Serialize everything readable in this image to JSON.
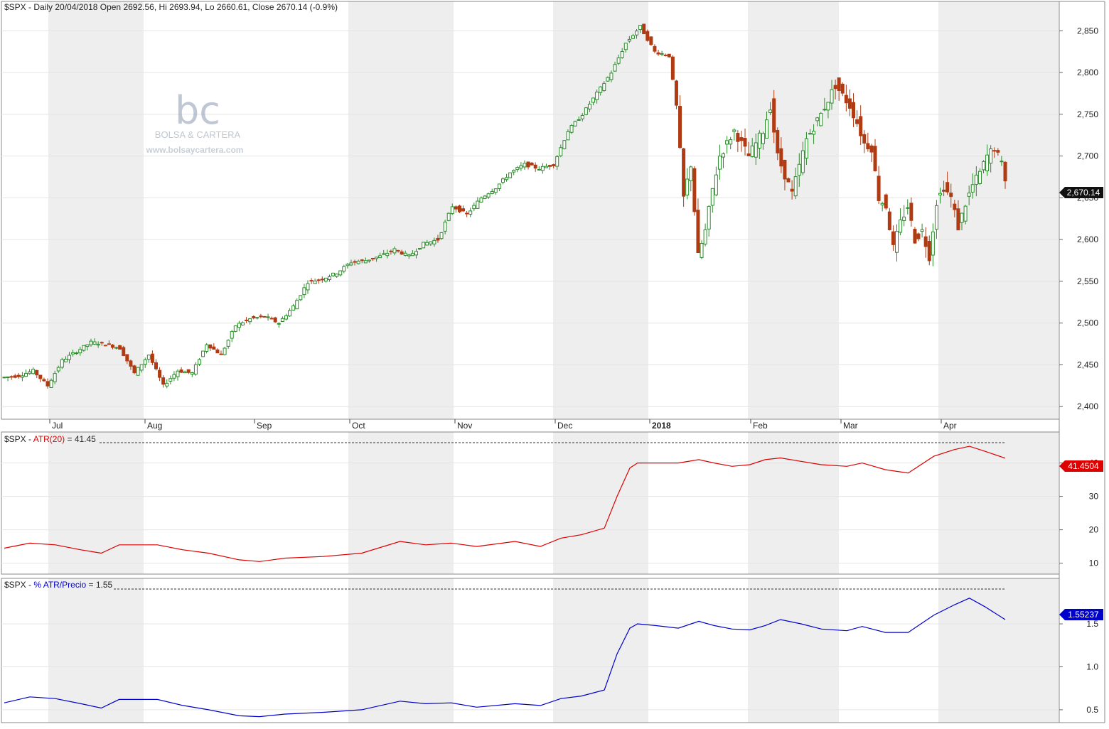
{
  "price_panel": {
    "symbol": "$SPX",
    "header": "$SPX - Daily 20/04/2018 Open 2692.56, Hi 2693.94, Lo 2660.61, Close 2670.14 (-0.9%)",
    "last_label": "2,670.14",
    "y_ticks": [
      "2,850",
      "2,800",
      "2,750",
      "2,700",
      "2,650",
      "2,600",
      "2,550",
      "2,500",
      "2,450",
      "2,400"
    ]
  },
  "atr_panel": {
    "prefix": "$SPX - ",
    "indicator": "ATR(20)",
    "value": " = 41.45",
    "last_label": "41.4504",
    "y_ticks": [
      "40",
      "30",
      "20",
      "10"
    ],
    "color": "#dd0000"
  },
  "pct_panel": {
    "prefix": "$SPX - ",
    "indicator": "% ATR/Precio",
    "value": " = 1.55",
    "last_label": "1.55237",
    "y_ticks": [
      "1.5",
      "1.0",
      "0.5"
    ],
    "color": "#0000cc"
  },
  "x_labels": [
    "Jul",
    "Aug",
    "Sep",
    "Oct",
    "Nov",
    "Dec",
    "2018",
    "Feb",
    "Mar",
    "Apr"
  ],
  "watermark": {
    "logo": "bc",
    "name": "BOLSA & CARTERA",
    "url": "www.bolsaycartera.com"
  },
  "colors": {
    "up": "#2a8c2a",
    "down": "#b03a12",
    "shade": "#eeeeee"
  },
  "chart_data": [
    {
      "type": "candlestick",
      "title": "$SPX - Daily 20/04/2018 Open 2692.56, Hi 2693.94, Lo 2660.61, Close 2670.14 (-0.9%)",
      "ylim": [
        2390,
        2880
      ],
      "y_ticks": [
        2400,
        2450,
        2500,
        2550,
        2600,
        2650,
        2700,
        2750,
        2800,
        2850
      ],
      "close_path": [
        [
          0,
          2435
        ],
        [
          4,
          2437
        ],
        [
          8,
          2443
        ],
        [
          12,
          2425
        ],
        [
          16,
          2455
        ],
        [
          20,
          2466
        ],
        [
          24,
          2477
        ],
        [
          28,
          2475
        ],
        [
          32,
          2470
        ],
        [
          36,
          2440
        ],
        [
          40,
          2462
        ],
        [
          44,
          2425
        ],
        [
          48,
          2443
        ],
        [
          52,
          2440
        ],
        [
          56,
          2475
        ],
        [
          60,
          2462
        ],
        [
          64,
          2497
        ],
        [
          68,
          2505
        ],
        [
          72,
          2508
        ],
        [
          76,
          2500
        ],
        [
          80,
          2520
        ],
        [
          84,
          2549
        ],
        [
          88,
          2553
        ],
        [
          92,
          2560
        ],
        [
          96,
          2573
        ],
        [
          100,
          2575
        ],
        [
          104,
          2580
        ],
        [
          108,
          2588
        ],
        [
          112,
          2580
        ],
        [
          116,
          2595
        ],
        [
          120,
          2600
        ],
        [
          124,
          2640
        ],
        [
          128,
          2630
        ],
        [
          132,
          2650
        ],
        [
          136,
          2662
        ],
        [
          140,
          2680
        ],
        [
          144,
          2690
        ],
        [
          148,
          2685
        ],
        [
          152,
          2690
        ],
        [
          156,
          2730
        ],
        [
          160,
          2750
        ],
        [
          164,
          2775
        ],
        [
          168,
          2800
        ],
        [
          172,
          2835
        ],
        [
          176,
          2855
        ],
        [
          180,
          2825
        ],
        [
          184,
          2820
        ],
        [
          186,
          2760
        ],
        [
          188,
          2650
        ],
        [
          190,
          2690
        ],
        [
          192,
          2580
        ],
        [
          194,
          2610
        ],
        [
          196,
          2660
        ],
        [
          198,
          2700
        ],
        [
          202,
          2730
        ],
        [
          206,
          2700
        ],
        [
          210,
          2730
        ],
        [
          212,
          2760
        ],
        [
          214,
          2700
        ],
        [
          218,
          2655
        ],
        [
          222,
          2720
        ],
        [
          226,
          2750
        ],
        [
          230,
          2785
        ],
        [
          234,
          2760
        ],
        [
          236,
          2740
        ],
        [
          238,
          2715
        ],
        [
          240,
          2710
        ],
        [
          242,
          2650
        ],
        [
          244,
          2640
        ],
        [
          246,
          2590
        ],
        [
          248,
          2620
        ],
        [
          250,
          2640
        ],
        [
          252,
          2600
        ],
        [
          254,
          2610
        ],
        [
          256,
          2580
        ],
        [
          258,
          2645
        ],
        [
          260,
          2663
        ],
        [
          262,
          2650
        ],
        [
          264,
          2615
        ],
        [
          266,
          2643
        ],
        [
          268,
          2665
        ],
        [
          270,
          2680
        ],
        [
          272,
          2700
        ],
        [
          274,
          2710
        ],
        [
          276,
          2690
        ],
        [
          277,
          2670.14
        ]
      ],
      "last": {
        "date": "20/04/2018",
        "open": 2692.56,
        "high": 2693.94,
        "low": 2660.61,
        "close": 2670.14,
        "change": "-0.9%"
      }
    },
    {
      "type": "line",
      "title": "$SPX - ATR(20) = 41.45",
      "ylim": [
        8,
        48
      ],
      "y_ticks": [
        10,
        20,
        30,
        40
      ],
      "series": [
        {
          "name": "ATR(20)",
          "color": "#dd0000",
          "points": [
            [
              0,
              14.5
            ],
            [
              10,
              16
            ],
            [
              20,
              15.5
            ],
            [
              30,
              14
            ],
            [
              38,
              13
            ],
            [
              45,
              15.5
            ],
            [
              60,
              15.5
            ],
            [
              70,
              14
            ],
            [
              80,
              13
            ],
            [
              92,
              11
            ],
            [
              100,
              10.5
            ],
            [
              110,
              11.5
            ],
            [
              125,
              12
            ],
            [
              140,
              13
            ],
            [
              155,
              16.5
            ],
            [
              165,
              15.5
            ],
            [
              175,
              16
            ],
            [
              185,
              15
            ],
            [
              200,
              16.5
            ],
            [
              210,
              15
            ],
            [
              218,
              17.5
            ],
            [
              226,
              18.5
            ],
            [
              235,
              20.5
            ],
            [
              240,
              30
            ],
            [
              245,
              38.5
            ],
            [
              248,
              40
            ],
            [
              255,
              40
            ],
            [
              264,
              40
            ],
            [
              272,
              41
            ],
            [
              278,
              40
            ],
            [
              285,
              39
            ],
            [
              292,
              39.5
            ],
            [
              298,
              41
            ],
            [
              304,
              41.5
            ],
            [
              312,
              40.5
            ],
            [
              320,
              39.5
            ],
            [
              330,
              39
            ],
            [
              336,
              40
            ],
            [
              345,
              38
            ],
            [
              354,
              37
            ],
            [
              364,
              42
            ],
            [
              372,
              44
            ],
            [
              378,
              45
            ],
            [
              384,
              43.5
            ],
            [
              392,
              41.45
            ]
          ]
        }
      ]
    },
    {
      "type": "line",
      "title": "$SPX - % ATR/Precio = 1.55",
      "ylim": [
        0.4,
        1.98
      ],
      "y_ticks": [
        0.5,
        1.0,
        1.5
      ],
      "series": [
        {
          "name": "% ATR/Precio",
          "color": "#0000cc",
          "points": [
            [
              0,
              0.58
            ],
            [
              10,
              0.65
            ],
            [
              20,
              0.63
            ],
            [
              30,
              0.57
            ],
            [
              38,
              0.52
            ],
            [
              45,
              0.62
            ],
            [
              60,
              0.62
            ],
            [
              70,
              0.55
            ],
            [
              80,
              0.5
            ],
            [
              92,
              0.43
            ],
            [
              100,
              0.42
            ],
            [
              110,
              0.45
            ],
            [
              125,
              0.47
            ],
            [
              140,
              0.5
            ],
            [
              155,
              0.6
            ],
            [
              165,
              0.57
            ],
            [
              175,
              0.58
            ],
            [
              185,
              0.53
            ],
            [
              200,
              0.57
            ],
            [
              210,
              0.55
            ],
            [
              218,
              0.63
            ],
            [
              226,
              0.66
            ],
            [
              235,
              0.73
            ],
            [
              240,
              1.15
            ],
            [
              245,
              1.45
            ],
            [
              248,
              1.5
            ],
            [
              255,
              1.48
            ],
            [
              264,
              1.45
            ],
            [
              272,
              1.53
            ],
            [
              278,
              1.48
            ],
            [
              285,
              1.44
            ],
            [
              292,
              1.43
            ],
            [
              298,
              1.48
            ],
            [
              304,
              1.55
            ],
            [
              312,
              1.5
            ],
            [
              320,
              1.44
            ],
            [
              330,
              1.42
            ],
            [
              336,
              1.47
            ],
            [
              345,
              1.4
            ],
            [
              354,
              1.4
            ],
            [
              364,
              1.6
            ],
            [
              372,
              1.72
            ],
            [
              378,
              1.8
            ],
            [
              384,
              1.7
            ],
            [
              392,
              1.55
            ]
          ]
        }
      ]
    }
  ]
}
